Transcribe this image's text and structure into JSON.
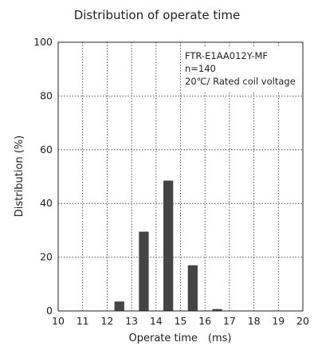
{
  "chart_data": {
    "type": "bar",
    "title": "Distribution of operate time",
    "xlabel": "Operate time　(ms)",
    "ylabel": "Distribution (%)",
    "xlim": [
      10,
      20
    ],
    "ylim": [
      0,
      100
    ],
    "xticks": [
      10,
      11,
      12,
      13,
      14,
      15,
      16,
      17,
      18,
      19,
      20
    ],
    "yticks": [
      0,
      20,
      40,
      60,
      80,
      100
    ],
    "grid": true,
    "bar_color": "#444444",
    "annotation": [
      "FTR-E1AA012Y-MF",
      "n=140",
      "20℃/ Rated coil voltage"
    ],
    "bins": [
      {
        "x": 12.5,
        "value": 3.5
      },
      {
        "x": 13.5,
        "value": 29.5
      },
      {
        "x": 14.5,
        "value": 48.5
      },
      {
        "x": 15.5,
        "value": 17
      },
      {
        "x": 16.5,
        "value": 0.7
      }
    ]
  }
}
